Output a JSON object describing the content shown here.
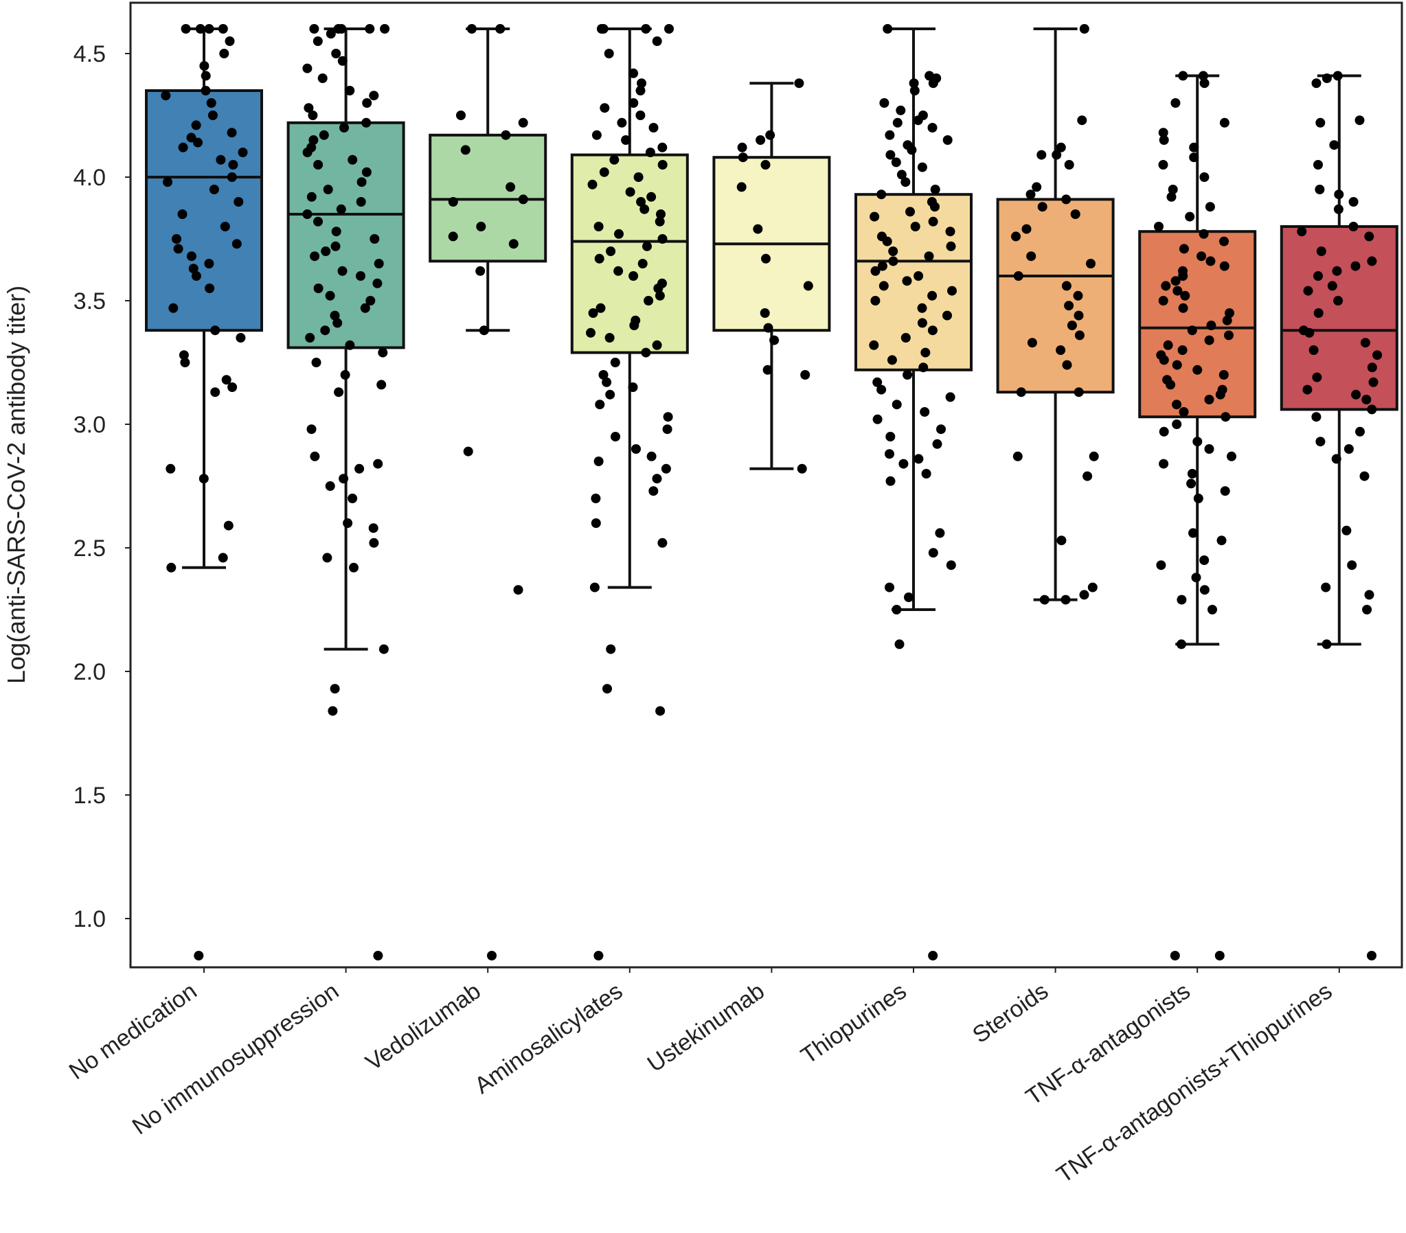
{
  "chart_data": {
    "type": "box",
    "title": "",
    "xlabel": "",
    "ylabel": "Log(anti-SARS-CoV-2 antibody titer)",
    "ylim": [
      0.8,
      4.7
    ],
    "yticks": [
      "1.0",
      "1.5",
      "2.0",
      "2.5",
      "3.0",
      "3.5",
      "4.0",
      "4.5"
    ],
    "categories": [
      "No medication",
      "No immunosuppression",
      "Vedolizumab",
      "Aminosalicylates",
      "Ustekinumab",
      "Thiopurines",
      "Steroids",
      "TNF-α-antagonists",
      "TNF-α-antagonists+Thiopurines"
    ],
    "series": [
      {
        "name": "No medication",
        "color": "#4181b4",
        "whisker_low": 2.42,
        "q1": 3.38,
        "median": 4.0,
        "q3": 4.35,
        "whisker_high": 4.6,
        "outliers": [
          0.85
        ],
        "points": [
          4.6,
          4.6,
          4.6,
          4.6,
          4.55,
          4.5,
          4.45,
          4.41,
          4.35,
          4.33,
          4.3,
          4.25,
          4.21,
          4.18,
          4.16,
          4.14,
          4.12,
          4.1,
          4.07,
          4.05,
          4.0,
          3.98,
          3.95,
          3.9,
          3.85,
          3.8,
          3.75,
          3.73,
          3.71,
          3.68,
          3.65,
          3.63,
          3.6,
          3.55,
          3.47,
          3.38,
          3.35,
          3.28,
          3.25,
          3.18,
          3.15,
          3.13,
          2.82,
          2.78,
          2.59,
          2.46,
          2.42,
          0.85
        ]
      },
      {
        "name": "No immunosuppression",
        "color": "#72b5a1",
        "whisker_low": 2.09,
        "q1": 3.31,
        "median": 3.85,
        "q3": 4.22,
        "whisker_high": 4.6,
        "outliers": [
          1.93,
          1.84,
          0.85
        ],
        "points": [
          4.6,
          4.6,
          4.6,
          4.6,
          4.6,
          4.58,
          4.55,
          4.5,
          4.47,
          4.44,
          4.4,
          4.35,
          4.33,
          4.3,
          4.28,
          4.25,
          4.22,
          4.2,
          4.17,
          4.15,
          4.12,
          4.1,
          4.07,
          4.05,
          4.02,
          3.98,
          3.95,
          3.92,
          3.9,
          3.87,
          3.85,
          3.82,
          3.78,
          3.75,
          3.72,
          3.7,
          3.68,
          3.65,
          3.62,
          3.6,
          3.57,
          3.55,
          3.52,
          3.5,
          3.47,
          3.44,
          3.41,
          3.38,
          3.35,
          3.32,
          3.29,
          3.25,
          3.2,
          3.16,
          3.13,
          2.98,
          2.87,
          2.84,
          2.82,
          2.78,
          2.75,
          2.7,
          2.6,
          2.58,
          2.52,
          2.46,
          2.42,
          2.09,
          1.93,
          1.84,
          0.85
        ]
      },
      {
        "name": "Vedolizumab",
        "color": "#acd8a6",
        "whisker_low": 3.38,
        "q1": 3.66,
        "median": 3.91,
        "q3": 4.17,
        "whisker_high": 4.6,
        "outliers": [
          2.89,
          2.33,
          0.85
        ],
        "points": [
          4.6,
          4.6,
          4.25,
          4.22,
          4.17,
          4.11,
          3.96,
          3.91,
          3.9,
          3.8,
          3.76,
          3.73,
          3.62,
          3.38,
          2.89,
          2.33,
          0.85
        ]
      },
      {
        "name": "Aminosalicylates",
        "color": "#e0ecaa",
        "whisker_low": 2.34,
        "q1": 3.29,
        "median": 3.74,
        "q3": 4.09,
        "whisker_high": 4.6,
        "outliers": [
          2.09,
          1.93,
          1.84,
          0.85
        ],
        "points": [
          4.6,
          4.6,
          4.6,
          4.6,
          4.55,
          4.5,
          4.42,
          4.38,
          4.35,
          4.3,
          4.28,
          4.25,
          4.22,
          4.2,
          4.17,
          4.15,
          4.12,
          4.1,
          4.07,
          4.05,
          4.02,
          4.0,
          3.97,
          3.94,
          3.92,
          3.9,
          3.87,
          3.85,
          3.82,
          3.8,
          3.77,
          3.75,
          3.72,
          3.7,
          3.67,
          3.65,
          3.62,
          3.6,
          3.57,
          3.55,
          3.52,
          3.5,
          3.47,
          3.45,
          3.42,
          3.4,
          3.37,
          3.35,
          3.32,
          3.29,
          3.25,
          3.2,
          3.17,
          3.15,
          3.12,
          3.08,
          3.03,
          2.98,
          2.95,
          2.9,
          2.87,
          2.85,
          2.82,
          2.78,
          2.73,
          2.7,
          2.6,
          2.52,
          2.34,
          2.09,
          1.93,
          1.84,
          0.85
        ]
      },
      {
        "name": "Ustekinumab",
        "color": "#f5f4c2",
        "whisker_low": 2.82,
        "q1": 3.38,
        "median": 3.73,
        "q3": 4.08,
        "whisker_high": 4.38,
        "outliers": [],
        "points": [
          4.38,
          4.17,
          4.15,
          4.12,
          4.08,
          4.05,
          3.96,
          3.79,
          3.67,
          3.56,
          3.45,
          3.39,
          3.34,
          3.22,
          3.2,
          2.82
        ]
      },
      {
        "name": "Thiopurines",
        "color": "#f4da9f",
        "whisker_low": 2.25,
        "q1": 3.22,
        "median": 3.66,
        "q3": 3.93,
        "whisker_high": 4.6,
        "outliers": [
          2.11,
          0.85
        ],
        "points": [
          4.6,
          4.41,
          4.4,
          4.38,
          4.38,
          4.35,
          4.3,
          4.27,
          4.25,
          4.23,
          4.22,
          4.2,
          4.17,
          4.15,
          4.13,
          4.11,
          4.09,
          4.06,
          4.04,
          4.01,
          3.98,
          3.95,
          3.93,
          3.9,
          3.88,
          3.86,
          3.84,
          3.82,
          3.8,
          3.78,
          3.76,
          3.74,
          3.72,
          3.7,
          3.68,
          3.66,
          3.64,
          3.62,
          3.6,
          3.58,
          3.56,
          3.54,
          3.52,
          3.5,
          3.47,
          3.44,
          3.41,
          3.38,
          3.35,
          3.32,
          3.29,
          3.26,
          3.23,
          3.2,
          3.17,
          3.14,
          3.11,
          3.08,
          3.05,
          3.02,
          2.98,
          2.95,
          2.92,
          2.88,
          2.86,
          2.84,
          2.8,
          2.77,
          2.56,
          2.48,
          2.43,
          2.34,
          2.3,
          2.25,
          2.11,
          0.85
        ]
      },
      {
        "name": "Steroids",
        "color": "#edaf75",
        "whisker_low": 2.29,
        "q1": 3.13,
        "median": 3.6,
        "q3": 3.91,
        "whisker_high": 4.6,
        "outliers": [],
        "points": [
          4.6,
          4.23,
          4.12,
          4.09,
          4.09,
          4.05,
          3.96,
          3.93,
          3.91,
          3.88,
          3.85,
          3.79,
          3.76,
          3.68,
          3.65,
          3.6,
          3.56,
          3.52,
          3.48,
          3.44,
          3.4,
          3.36,
          3.33,
          3.3,
          3.24,
          3.13,
          3.13,
          2.87,
          2.87,
          2.79,
          2.53,
          2.34,
          2.31,
          2.29,
          2.29
        ]
      },
      {
        "name": "TNF-α-antagonists",
        "color": "#e07c57",
        "whisker_low": 2.11,
        "q1": 3.03,
        "median": 3.39,
        "q3": 3.78,
        "whisker_high": 4.41,
        "outliers": [
          0.85
        ],
        "points": [
          4.41,
          4.41,
          4.38,
          4.3,
          4.22,
          4.18,
          4.15,
          4.12,
          4.08,
          4.05,
          4.0,
          3.95,
          3.92,
          3.88,
          3.84,
          3.8,
          3.77,
          3.74,
          3.71,
          3.68,
          3.66,
          3.64,
          3.62,
          3.6,
          3.58,
          3.56,
          3.54,
          3.52,
          3.5,
          3.47,
          3.45,
          3.42,
          3.4,
          3.38,
          3.36,
          3.34,
          3.32,
          3.3,
          3.28,
          3.26,
          3.24,
          3.22,
          3.2,
          3.18,
          3.16,
          3.14,
          3.12,
          3.1,
          3.08,
          3.05,
          3.03,
          3.0,
          2.97,
          2.93,
          2.9,
          2.87,
          2.84,
          2.8,
          2.76,
          2.73,
          2.7,
          2.56,
          2.53,
          2.45,
          2.43,
          2.38,
          2.33,
          2.29,
          2.25,
          2.11,
          0.85,
          0.85
        ]
      },
      {
        "name": "TNF-α-antagonists+Thiopurines",
        "color": "#c4505a",
        "whisker_low": 2.11,
        "q1": 3.06,
        "median": 3.38,
        "q3": 3.8,
        "whisker_high": 4.41,
        "outliers": [
          0.85
        ],
        "points": [
          4.41,
          4.4,
          4.38,
          4.23,
          4.22,
          4.13,
          4.05,
          3.95,
          3.93,
          3.9,
          3.87,
          3.8,
          3.78,
          3.76,
          3.7,
          3.66,
          3.64,
          3.62,
          3.6,
          3.56,
          3.54,
          3.5,
          3.45,
          3.38,
          3.37,
          3.33,
          3.3,
          3.28,
          3.23,
          3.19,
          3.17,
          3.14,
          3.12,
          3.1,
          3.06,
          3.03,
          2.97,
          2.93,
          2.9,
          2.86,
          2.79,
          2.57,
          2.43,
          2.34,
          2.31,
          2.25,
          2.11,
          0.85
        ]
      }
    ]
  }
}
